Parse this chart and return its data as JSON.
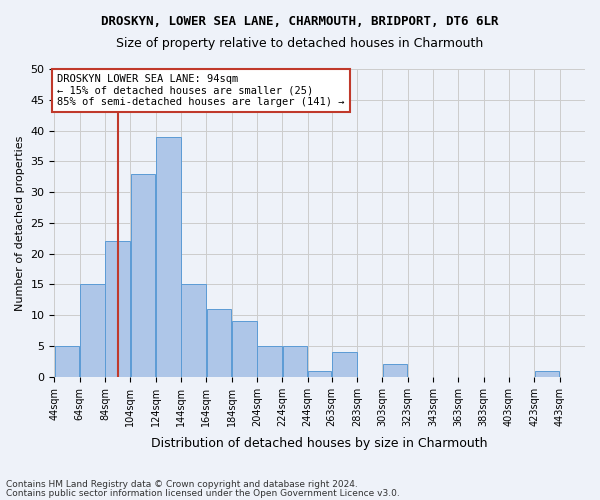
{
  "title1": "DROSKYN, LOWER SEA LANE, CHARMOUTH, BRIDPORT, DT6 6LR",
  "title2": "Size of property relative to detached houses in Charmouth",
  "xlabel": "Distribution of detached houses by size in Charmouth",
  "ylabel": "Number of detached properties",
  "footer1": "Contains HM Land Registry data © Crown copyright and database right 2024.",
  "footer2": "Contains public sector information licensed under the Open Government Licence v3.0.",
  "annotation_title": "DROSKYN LOWER SEA LANE: 94sqm",
  "annotation_line2": "← 15% of detached houses are smaller (25)",
  "annotation_line3": "85% of semi-detached houses are larger (141) →",
  "property_size": 94,
  "bar_categories": [
    "44sqm",
    "64sqm",
    "84sqm",
    "104sqm",
    "124sqm",
    "144sqm",
    "164sqm",
    "184sqm",
    "204sqm",
    "224sqm",
    "244sqm",
    "263sqm",
    "283sqm",
    "303sqm",
    "323sqm",
    "343sqm",
    "363sqm",
    "383sqm",
    "403sqm",
    "423sqm",
    "443sqm"
  ],
  "bar_values": [
    5,
    15,
    22,
    33,
    39,
    15,
    11,
    9,
    5,
    5,
    1,
    4,
    0,
    2,
    0,
    0,
    0,
    0,
    0,
    1,
    0
  ],
  "bar_edges": [
    44,
    64,
    84,
    104,
    124,
    144,
    164,
    184,
    204,
    224,
    244,
    263,
    283,
    303,
    323,
    343,
    363,
    383,
    403,
    423,
    443,
    463
  ],
  "bar_color": "#aec6e8",
  "bar_edge_color": "#5b9bd5",
  "vline_color": "#c0392b",
  "vline_x": 94,
  "ylim": [
    0,
    50
  ],
  "yticks": [
    0,
    5,
    10,
    15,
    20,
    25,
    30,
    35,
    40,
    45,
    50
  ],
  "grid_color": "#cccccc",
  "bg_color": "#eef2f9",
  "annotation_box_color": "#ffffff",
  "annotation_box_edge": "#c0392b"
}
